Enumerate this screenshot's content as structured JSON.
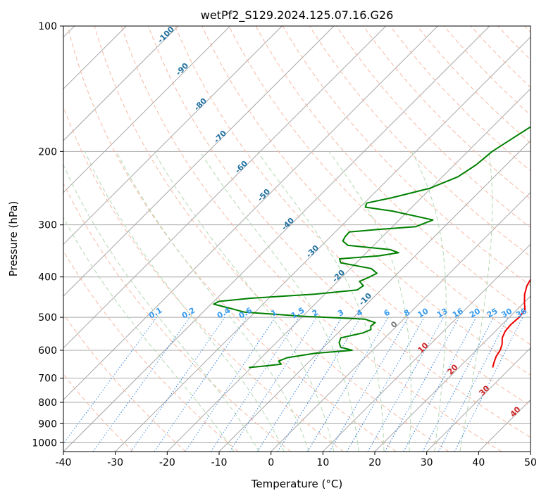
{
  "chart_data": {
    "type": "line",
    "title": "wetPf2_S129.2024.125.07.16.G26",
    "xlabel": "Temperature (°C)",
    "ylabel": "Pressure (hPa)",
    "xlim": [
      -40,
      50
    ],
    "ylim": [
      1050,
      100
    ],
    "y_scale": "log",
    "grid": true,
    "x_ticks": [
      "-40",
      "-30",
      "-20",
      "-10",
      "0",
      "10",
      "20",
      "30",
      "40",
      "50"
    ],
    "y_ticks": [
      "100",
      "200",
      "300",
      "400",
      "500",
      "600",
      "700",
      "800",
      "900",
      "1000"
    ],
    "skew_deg": 45,
    "series": [
      {
        "name": "",
        "role": "temperature",
        "color": "#ee0000",
        "points": [
          [
            7.0,
            100
          ],
          [
            6.6,
            106
          ],
          [
            5.2,
            112
          ],
          [
            3.0,
            118
          ],
          [
            1.5,
            125
          ],
          [
            0.9,
            133
          ],
          [
            1.0,
            145
          ],
          [
            1.3,
            160
          ],
          [
            2.2,
            175
          ],
          [
            3.8,
            190
          ],
          [
            5.3,
            205
          ],
          [
            6.8,
            220
          ],
          [
            8.2,
            235
          ],
          [
            9.6,
            250
          ],
          [
            10.9,
            265
          ],
          [
            11.8,
            280
          ],
          [
            12.4,
            295
          ],
          [
            13.3,
            310
          ],
          [
            13.9,
            325
          ],
          [
            13.8,
            340
          ],
          [
            14.3,
            355
          ],
          [
            15.3,
            370
          ],
          [
            16.0,
            385
          ],
          [
            16.6,
            400
          ],
          [
            17.3,
            420
          ],
          [
            18.5,
            440
          ],
          [
            20.0,
            460
          ],
          [
            21.6,
            480
          ],
          [
            21.9,
            500
          ],
          [
            21.7,
            520
          ],
          [
            21.9,
            540
          ],
          [
            22.6,
            560
          ],
          [
            23.8,
            580
          ],
          [
            24.6,
            600
          ],
          [
            25.0,
            620
          ],
          [
            25.7,
            640
          ],
          [
            26.5,
            660
          ]
        ]
      },
      {
        "name": "",
        "role": "dewpoint",
        "color": "#008000",
        "points": [
          [
            -8.5,
            100
          ],
          [
            -10.2,
            107
          ],
          [
            -12.1,
            114
          ],
          [
            -12.7,
            120
          ],
          [
            -12.3,
            126
          ],
          [
            -11.2,
            133
          ],
          [
            -11.3,
            145
          ],
          [
            -11.3,
            158
          ],
          [
            -12.1,
            170
          ],
          [
            -13.8,
            185
          ],
          [
            -15.3,
            200
          ],
          [
            -15.8,
            215
          ],
          [
            -17.0,
            230
          ],
          [
            -20.2,
            245
          ],
          [
            -25.6,
            258
          ],
          [
            -29.5,
            266
          ],
          [
            -29.0,
            272
          ],
          [
            -23.0,
            278
          ],
          [
            -13.5,
            292
          ],
          [
            -15.5,
            303
          ],
          [
            -22.5,
            308
          ],
          [
            -27.3,
            312
          ],
          [
            -27.2,
            320
          ],
          [
            -26.8,
            328
          ],
          [
            -25.0,
            336
          ],
          [
            -16.0,
            344
          ],
          [
            -13.8,
            350
          ],
          [
            -17.0,
            356
          ],
          [
            -24.0,
            362
          ],
          [
            -23.0,
            370
          ],
          [
            -16.0,
            382
          ],
          [
            -14.0,
            392
          ],
          [
            -15.0,
            403
          ],
          [
            -15.8,
            410
          ],
          [
            -14.2,
            420
          ],
          [
            -14.6,
            430
          ],
          [
            -22.0,
            440
          ],
          [
            -33.5,
            450
          ],
          [
            -39.0,
            458
          ],
          [
            -39.5,
            465
          ],
          [
            -35.8,
            475
          ],
          [
            -32.0,
            486
          ],
          [
            -20.0,
            497
          ],
          [
            -7.5,
            505
          ],
          [
            -4.8,
            515
          ],
          [
            -5.0,
            525
          ],
          [
            -4.3,
            535
          ],
          [
            -5.2,
            545
          ],
          [
            -8.5,
            560
          ],
          [
            -7.9,
            575
          ],
          [
            -6.7,
            590
          ],
          [
            -3.9,
            600
          ],
          [
            -10.5,
            610
          ],
          [
            -15.0,
            625
          ],
          [
            -16.0,
            637
          ],
          [
            -14.9,
            648
          ],
          [
            -18.0,
            655
          ],
          [
            -20.5,
            660
          ]
        ]
      }
    ],
    "dry_adiabats_theta_C": [
      -30,
      -20,
      -10,
      0,
      10,
      20,
      30,
      40,
      50,
      60,
      70,
      80,
      90,
      100,
      110,
      120,
      130,
      140,
      150,
      160,
      170,
      180,
      190,
      200,
      210,
      220,
      230,
      240,
      250,
      260,
      270,
      280,
      290,
      300,
      310
    ],
    "moist_adiabats_C": [
      -10,
      -5,
      0,
      5,
      10,
      15,
      20,
      25,
      30,
      35
    ],
    "mixing_ratios_gkg": [
      0.1,
      0.2,
      0.4,
      0.6,
      1,
      1.5,
      2,
      3,
      4,
      6,
      8,
      10,
      13,
      16,
      20,
      25,
      30,
      36
    ],
    "mixing_ratio_labels": [
      "0.1",
      "0.2",
      "0.4",
      "0.6",
      "1",
      "1.5",
      "2",
      "3",
      "4",
      "6",
      "8",
      "10",
      "13",
      "16",
      "20",
      "25",
      "30",
      "36"
    ],
    "isotherm_labels": [
      {
        "text": "-100",
        "t": -100
      },
      {
        "text": "-90",
        "t": -90
      },
      {
        "text": "-80",
        "t": -80
      },
      {
        "text": "-70",
        "t": -70
      },
      {
        "text": "-60",
        "t": -60
      },
      {
        "text": "-50",
        "t": -50
      },
      {
        "text": "-40",
        "t": -40
      },
      {
        "text": "-30",
        "t": -30
      },
      {
        "text": "-20",
        "t": -20
      },
      {
        "text": "-10",
        "t": -10
      },
      {
        "text": "0",
        "t": 0
      },
      {
        "text": "10",
        "t": 10
      },
      {
        "text": "20",
        "t": 20
      },
      {
        "text": "30",
        "t": 30
      },
      {
        "text": "40",
        "t": 40
      }
    ],
    "colors": {
      "isotherm": "#a8a8a8",
      "isobar": "#a8a8a8",
      "dry_adiabat": "#f6b9a2",
      "moist_adiabat": "#b2d8b2",
      "mixing_ratio": "#4a90e0",
      "mixing_label": "#3399ee",
      "iso_label_cold": "#1f6fa0",
      "iso_label_zero": "#7a7a7a",
      "iso_label_warm": "#cc2222"
    }
  }
}
